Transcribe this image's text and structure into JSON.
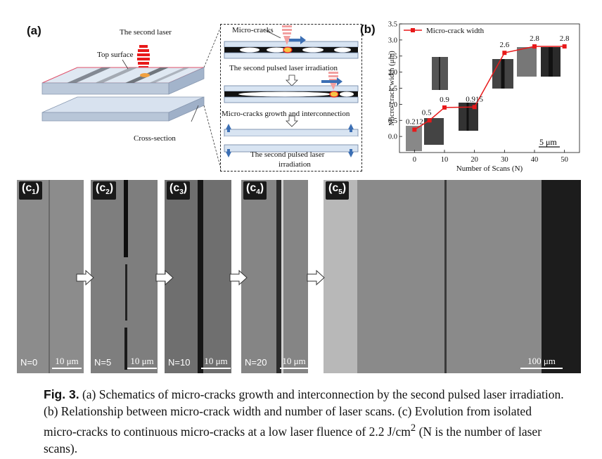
{
  "panel_a": {
    "label": "(a)",
    "laser_label": "The second laser",
    "top_surface_label": "Top surface",
    "cross_section_label": "Cross-section",
    "inset": {
      "micro_cracks": "Micro-cracks",
      "step1": "The second pulsed laser irradiation",
      "step2": "Micro-cracks growth and interconnection",
      "step3_line1": "The second pulsed laser",
      "step3_line2": "irradiation"
    }
  },
  "panel_b": {
    "label": "(b)",
    "scale_text": "5 μm"
  },
  "chart_data": {
    "type": "line",
    "xlabel": "Number of Scans (N)",
    "ylabel": "Micro-crack width (μm)",
    "x": [
      0,
      5,
      10,
      20,
      30,
      40,
      50
    ],
    "x_ticks": [
      "0",
      "10",
      "20",
      "30",
      "40",
      "50"
    ],
    "xlim": [
      -5,
      55
    ],
    "ylim": [
      -0.5,
      3.5
    ],
    "y_ticks": [
      "0.0",
      "0.5",
      "1.0",
      "1.5",
      "2.0",
      "2.5",
      "3.0",
      "3.5"
    ],
    "series": [
      {
        "name": "Micro-crack width",
        "color": "#e8191a",
        "marker": "square",
        "values": [
          0.212,
          0.5,
          0.9,
          0.915,
          2.6,
          2.8,
          2.8
        ],
        "labels": [
          "0.212",
          "0.5",
          "0.9",
          "0.915",
          "2.6",
          "2.8",
          "2.8"
        ]
      }
    ],
    "legend": "top-left",
    "grid": false
  },
  "panel_c": {
    "items": [
      {
        "label": "c",
        "sub": "1",
        "n": "N=0",
        "scale": "10 μm"
      },
      {
        "label": "c",
        "sub": "2",
        "n": "N=5",
        "scale": "10 μm"
      },
      {
        "label": "c",
        "sub": "3",
        "n": "N=10",
        "scale": "10 μm"
      },
      {
        "label": "c",
        "sub": "4",
        "n": "N=20",
        "scale": "10 μm"
      },
      {
        "label": "c",
        "sub": "5",
        "n": "",
        "scale": "100 μm"
      }
    ]
  },
  "caption": {
    "fig": "Fig. 3.",
    "line1": " (a) Schematics of micro-cracks growth and interconnection by the second pulsed laser irradiation. (b) Relationship between micro-crack width and number of laser scans. (c) Evolution from isolated micro-cracks to continuous micro-cracks at a low laser fluence of 2.2 J/cm",
    "sup": "2",
    "line2": " (N is the number of laser scans)."
  }
}
